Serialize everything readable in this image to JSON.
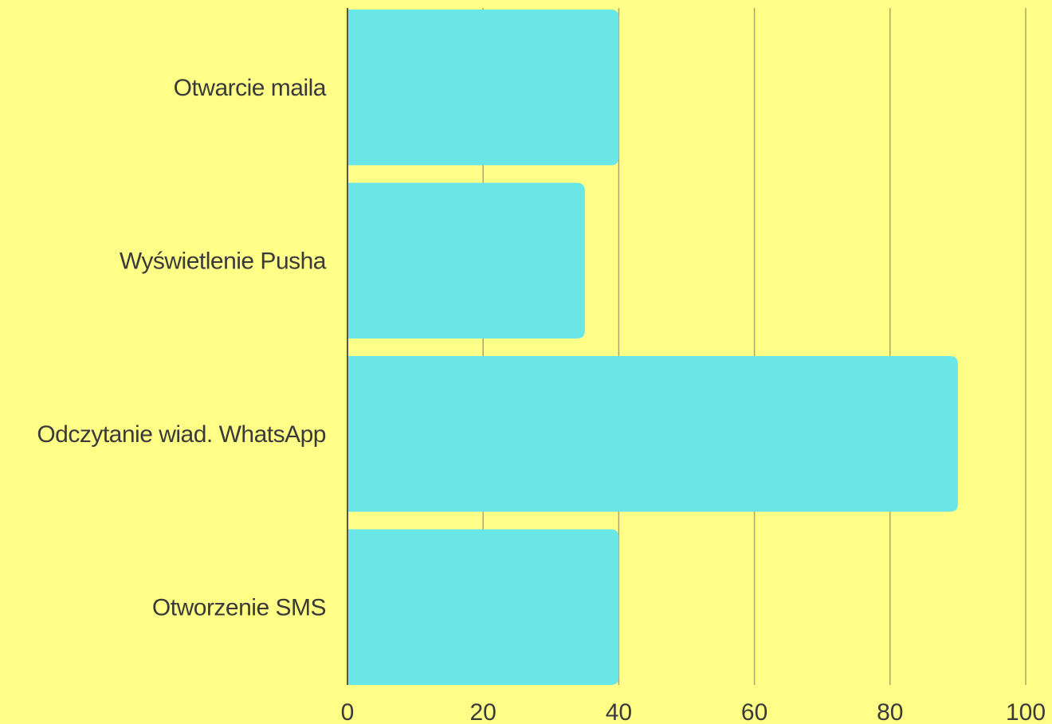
{
  "background_color": "#ffff88",
  "chart_data": {
    "type": "bar",
    "orientation": "horizontal",
    "categories": [
      "Otwarcie maila",
      "Wyświetlenie Pusha",
      "Odczytanie wiad. WhatsApp",
      "Otworzenie SMS"
    ],
    "values": [
      40,
      35,
      90,
      40
    ],
    "bar_color": "#6ae6e6",
    "xlim": [
      0,
      100
    ],
    "x_ticks": [
      "0",
      "20",
      "40",
      "60",
      "80",
      "100"
    ],
    "grid": true,
    "title": "",
    "xlabel": "",
    "ylabel": ""
  }
}
